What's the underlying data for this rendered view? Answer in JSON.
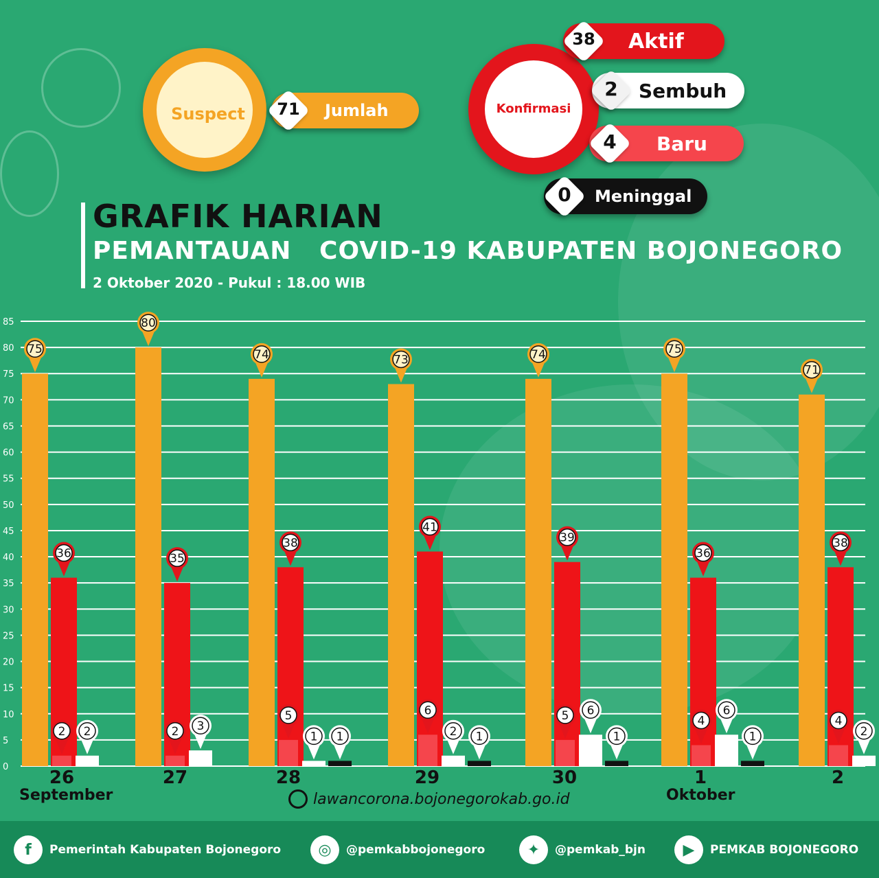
{
  "suspect": {
    "label": "Suspect",
    "count": "71",
    "count_label": "Jumlah"
  },
  "konfirmasi": {
    "label": "Konfirmasi",
    "aktif": {
      "value": "38",
      "label": "Aktif"
    },
    "sembuh": {
      "value": "2",
      "label": "Sembuh"
    },
    "baru": {
      "value": "4",
      "label": "Baru"
    },
    "meninggal": {
      "value": "0",
      "label": "Meninggal"
    }
  },
  "header": {
    "title": "GRAFIK HARIAN",
    "subtitle": "PEMANTAUAN   COVID-19 KABUPATEN BOJONEGORO",
    "date_line": "2 Oktober 2020 - Pukul : 18.00 WIB"
  },
  "colors": {
    "suspect": "#f4a424",
    "aktif": "#ee1418",
    "baru": "#f5454c",
    "sembuh": "#ffffff",
    "meninggal": "#111111",
    "background": "#2aa872"
  },
  "chart_data": {
    "type": "bar",
    "categories": [
      "26",
      "27",
      "28",
      "29",
      "30",
      "1",
      "2"
    ],
    "month_labels": [
      {
        "text": "September",
        "category": "26"
      },
      {
        "text": "Oktober",
        "category": "1"
      }
    ],
    "ylim": [
      0,
      85
    ],
    "yticks": [
      "0",
      "5",
      "10",
      "15",
      "20",
      "25",
      "30",
      "35",
      "40",
      "45",
      "50",
      "55",
      "60",
      "65",
      "70",
      "75",
      "80",
      "85"
    ],
    "grid": true,
    "series": [
      {
        "key": "suspect",
        "values": [
          75,
          80,
          74,
          73,
          74,
          75,
          71
        ]
      },
      {
        "key": "aktif",
        "values": [
          36,
          35,
          38,
          41,
          39,
          36,
          38
        ]
      },
      {
        "key": "baru",
        "values": [
          2,
          2,
          5,
          6,
          5,
          4,
          4
        ]
      },
      {
        "key": "sembuh",
        "values": [
          2,
          3,
          1,
          2,
          6,
          6,
          2
        ]
      },
      {
        "key": "meninggal",
        "values": [
          null,
          null,
          1,
          1,
          1,
          1,
          null
        ]
      }
    ]
  },
  "website": "lawancorona.bojonegorokab.go.id",
  "footer": {
    "facebook": "Pemerintah Kabupaten Bojonegoro",
    "instagram": "@pemkabbojonegoro",
    "twitter": "@pemkab_bjn",
    "youtube": "PEMKAB BOJONEGORO"
  }
}
